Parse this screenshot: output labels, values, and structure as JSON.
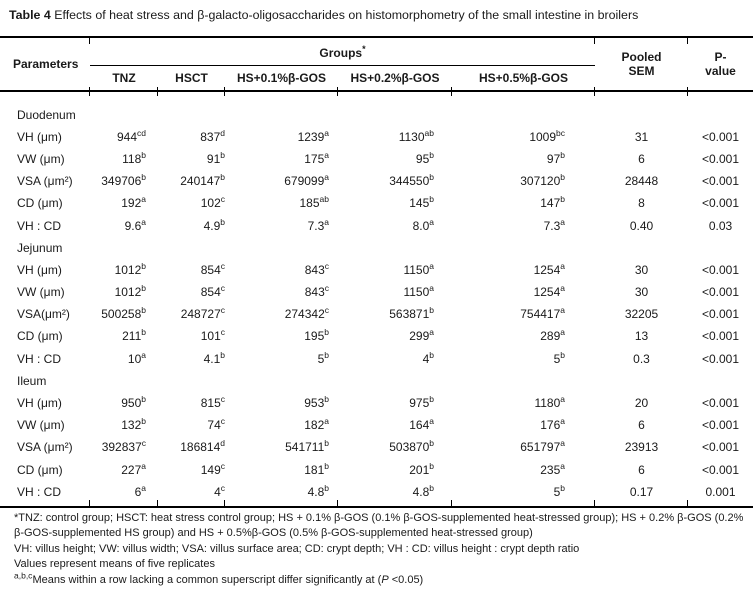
{
  "colors": {
    "background": "#ffffff",
    "text": "#1a1a1a",
    "rule": "#000000"
  },
  "title": {
    "bold": "Table 4",
    "rest": " Effects of heat stress and β-galacto-oligosaccharides on histomorphometry of the small intestine in broilers"
  },
  "header": {
    "parameters": "Parameters",
    "groups_label": "Groups",
    "groups_sup": "*",
    "group_columns": [
      "TNZ",
      "HSCT",
      "HS+0.1%β-GOS",
      "HS+0.2%β-GOS",
      "HS+0.5%β-GOS"
    ],
    "pooled_sem": "Pooled SEM",
    "p_value": "P-value"
  },
  "chart_data": {
    "type": "table",
    "title": "Table 4 Effects of heat stress and β-galacto-oligosaccharides on histomorphometry of the small intestine in broilers",
    "columns": [
      "Parameters",
      "TNZ",
      "HSCT",
      "HS+0.1%β-GOS",
      "HS+0.2%β-GOS",
      "HS+0.5%β-GOS",
      "Pooled SEM",
      "P-value"
    ]
  },
  "sections": [
    {
      "name": "Duodenum",
      "rows": [
        {
          "param": "VH (μm)",
          "values": [
            "944^cd",
            "837^d",
            "1239^a",
            "1130^ab",
            "1009^bc"
          ],
          "sem": "31",
          "p": "<0.001"
        },
        {
          "param": "VW (μm)",
          "values": [
            "118^b",
            "91^b",
            "175^a",
            "95^b",
            "97^b"
          ],
          "sem": "6",
          "p": "<0.001"
        },
        {
          "param": "VSA (μm²)",
          "values": [
            "349706^b",
            "240147^b",
            "679099^a",
            "344550^b",
            "307120^b"
          ],
          "sem": "28448",
          "p": "<0.001"
        },
        {
          "param": "CD (μm)",
          "values": [
            "192^a",
            "102^c",
            "185^ab",
            "145^b",
            "147^b"
          ],
          "sem": "8",
          "p": "<0.001"
        },
        {
          "param": "VH : CD",
          "values": [
            "9.6^a",
            "4.9^b",
            "7.3^a",
            "8.0^a",
            "7.3^a"
          ],
          "sem": "0.40",
          "p": "0.03"
        }
      ]
    },
    {
      "name": "Jejunum",
      "rows": [
        {
          "param": "VH (μm)",
          "values": [
            "1012^b",
            "854^c",
            "843^c",
            "1150^a",
            "1254^a"
          ],
          "sem": "30",
          "p": "<0.001"
        },
        {
          "param": "VW (μm)",
          "values": [
            "1012^b",
            "854^c",
            "843^c",
            "1150^a",
            "1254^a"
          ],
          "sem": "30",
          "p": "<0.001"
        },
        {
          "param": "VSA(μm²)",
          "values": [
            "500258^b",
            "248727^c",
            "274342^c",
            "563871^b",
            "754417^a"
          ],
          "sem": "32205",
          "p": "<0.001"
        },
        {
          "param": "CD (μm)",
          "values": [
            "211^b",
            "101^c",
            "195^b",
            "299^a",
            "289^a"
          ],
          "sem": "13",
          "p": "<0.001"
        },
        {
          "param": "VH : CD",
          "values": [
            "10^a",
            "4.1^b",
            "5^b",
            "4^b",
            "5^b"
          ],
          "sem": "0.3",
          "p": "<0.001"
        }
      ]
    },
    {
      "name": "Ileum",
      "rows": [
        {
          "param": "VH (μm)",
          "values": [
            "950^b",
            "815^c",
            "953^b",
            "975^b",
            "1180^a"
          ],
          "sem": "20",
          "p": "<0.001"
        },
        {
          "param": "VW (μm)",
          "values": [
            "132^b",
            "74^c",
            "182^a",
            "164^a",
            "176^a"
          ],
          "sem": "6",
          "p": "<0.001"
        },
        {
          "param": "VSA (μm²)",
          "values": [
            "392837^c",
            "186814^d",
            "541711^b",
            "503870^b",
            "651797^a"
          ],
          "sem": "23913",
          "p": "<0.001"
        },
        {
          "param": "CD (μm)",
          "values": [
            "227^a",
            "149^c",
            "181^b",
            "201^b",
            "235^a"
          ],
          "sem": "6",
          "p": "<0.001"
        },
        {
          "param": "VH : CD",
          "values": [
            "6^a",
            "4^c",
            "4.8^b",
            "4.8^b",
            "5^b"
          ],
          "sem": "0.17",
          "p": "0.001"
        }
      ]
    }
  ],
  "footnotes": {
    "line1": "*TNZ: control group; HSCT: heat stress control group; HS + 0.1% β-GOS (0.1% β-GOS-supplemented heat-stressed group); HS + 0.2% β-GOS (0.2% β-GOS-supplemented HS group) and HS + 0.5%β-GOS (0.5% β-GOS-supplemented heat-stressed group)",
    "line2": "VH: villus height; VW: villus width; VSA: villus surface area; CD: crypt depth; VH : CD: villus height : crypt depth ratio",
    "line3": "Values represent means of five replicates",
    "line4_sup": "a,b,c",
    "line4_pre": "Means within a row lacking a common superscript differ significantly at (",
    "line4_italic": "P",
    "line4_post": " <0.05)"
  }
}
